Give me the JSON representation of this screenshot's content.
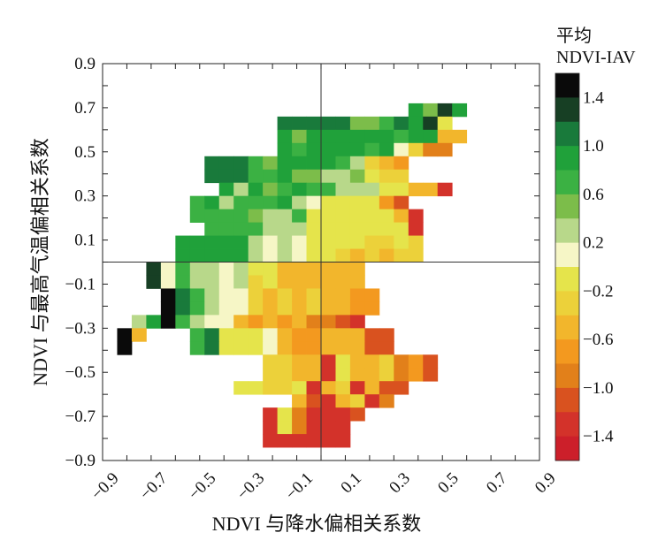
{
  "chart_data": {
    "type": "heatmap",
    "xlabel": "NDVI 与降水偏相关系数",
    "ylabel": "NDVI 与最高气温偏相关系数",
    "xlim": [
      -0.9,
      0.9
    ],
    "ylim": [
      -0.9,
      0.9
    ],
    "x_ticks": [
      -0.9,
      -0.8,
      -0.7,
      -0.6,
      -0.5,
      -0.4,
      -0.3,
      -0.2,
      -0.1,
      0.0,
      0.1,
      0.2,
      0.3,
      0.4,
      0.5,
      0.6,
      0.7,
      0.8,
      0.9
    ],
    "x_tick_labels": [
      "−0.9",
      "",
      "−0.7",
      "",
      "−0.5",
      "",
      "−0.3",
      "",
      "−0.1",
      "",
      "0.1",
      "",
      "0.3",
      "",
      "0.5",
      "",
      "0.7",
      "",
      "0.9"
    ],
    "y_ticks": [
      0.9,
      0.8,
      0.7,
      0.6,
      0.5,
      0.4,
      0.3,
      0.2,
      0.1,
      0.0,
      -0.1,
      -0.2,
      -0.3,
      -0.4,
      -0.5,
      -0.6,
      -0.7,
      -0.8,
      -0.9
    ],
    "y_tick_labels": [
      "0.9",
      "",
      "0.7",
      "",
      "0.5",
      "",
      "0.3",
      "",
      "0.1",
      "",
      "−0.1",
      "",
      "−0.3",
      "",
      "−0.5",
      "",
      "−0.7",
      "",
      "−0.9"
    ],
    "bin_size": 0.06,
    "reference_lines": {
      "x": 0.0,
      "y": 0.0
    },
    "colorbar": {
      "title_lines": [
        "平均",
        "NDVI-IAV"
      ],
      "min": -1.6,
      "max": 1.6,
      "tick_values": [
        1.4,
        1.0,
        0.6,
        0.2,
        -0.2,
        -0.6,
        -1.0,
        -1.4
      ],
      "tick_labels": [
        "1.4",
        "1.0",
        "0.6",
        "0.2",
        "−0.2",
        "−0.6",
        "−1.0",
        "−1.4"
      ],
      "levels": [
        {
          "min": 1.4,
          "max": 1.6,
          "color": "#0a0a0a"
        },
        {
          "min": 1.2,
          "max": 1.4,
          "color": "#173f24"
        },
        {
          "min": 1.0,
          "max": 1.2,
          "color": "#197a3b"
        },
        {
          "min": 0.8,
          "max": 1.0,
          "color": "#20a13a"
        },
        {
          "min": 0.6,
          "max": 0.8,
          "color": "#3bb143"
        },
        {
          "min": 0.4,
          "max": 0.6,
          "color": "#7cbd4a"
        },
        {
          "min": 0.2,
          "max": 0.4,
          "color": "#b8d88a"
        },
        {
          "min": 0.0,
          "max": 0.2,
          "color": "#f6f6c6"
        },
        {
          "min": -0.2,
          "max": 0.0,
          "color": "#e5e44b"
        },
        {
          "min": -0.4,
          "max": -0.2,
          "color": "#ecd13a"
        },
        {
          "min": -0.6,
          "max": -0.4,
          "color": "#f2b62c"
        },
        {
          "min": -0.8,
          "max": -0.6,
          "color": "#f3991f"
        },
        {
          "min": -1.0,
          "max": -0.8,
          "color": "#e2801a"
        },
        {
          "min": -1.2,
          "max": -1.0,
          "color": "#d9521f"
        },
        {
          "min": -1.4,
          "max": -1.2,
          "color": "#d3322a"
        },
        {
          "min": -1.6,
          "max": -1.4,
          "color": "#cc1f2a"
        }
      ]
    },
    "rows": [
      {
        "y": 0.69,
        "x_start": 0.39,
        "values": [
          0.8,
          0.5,
          1.2,
          0.8
        ]
      },
      {
        "y": 0.63,
        "x_start": -0.15,
        "values": [
          1.0,
          1.0,
          1.0,
          1.0,
          1.0,
          0.5,
          0.5,
          0.6,
          1.0,
          0.9,
          1.3,
          -0.2
        ]
      },
      {
        "y": 0.57,
        "x_start": -0.15,
        "values": [
          0.8,
          0.5,
          0.8,
          0.8,
          0.8,
          0.8,
          0.8,
          0.8,
          0.7,
          0.9,
          0.8,
          -0.6,
          -0.6
        ]
      },
      {
        "y": 0.51,
        "x_start": -0.15,
        "values": [
          0.9,
          0.6,
          0.8,
          0.8,
          0.8,
          0.8,
          0.7,
          0.8,
          0.1,
          -0.4,
          -0.9,
          -0.9
        ]
      },
      {
        "y": 0.45,
        "x_start": -0.45,
        "values": [
          1.1,
          1.1,
          1.1,
          0.7,
          0.5,
          0.8,
          0.8,
          0.8,
          0.8,
          0.7,
          0.3,
          -0.3,
          -0.5,
          -0.7
        ]
      },
      {
        "y": 0.39,
        "x_start": -0.45,
        "values": [
          1.1,
          1.1,
          1.1,
          0.7,
          0.7,
          0.8,
          0.5,
          0.5,
          0.3,
          0.3,
          0.5,
          -0.2,
          -0.3,
          -0.4
        ]
      },
      {
        "y": 0.33,
        "x_start": -0.39,
        "values": [
          0.8,
          0.2,
          0.8,
          0.5,
          0.7,
          0.8,
          0.6,
          0.6,
          0.3,
          0.3,
          0.3,
          -0.2,
          -0.2,
          -0.5,
          -0.5,
          -1.4
        ]
      },
      {
        "y": 0.27,
        "x_start": -0.51,
        "values": [
          0.7,
          0.9,
          0.3,
          0.7,
          0.6,
          0.7,
          0.8,
          0.3,
          0.1,
          -0.1,
          -0.1,
          -0.1,
          -0.1,
          -0.7,
          -1.1
        ]
      },
      {
        "y": 0.21,
        "x_start": -0.51,
        "values": [
          0.7,
          0.7,
          0.7,
          0.7,
          0.5,
          0.3,
          0.3,
          0.6,
          -0.1,
          -0.1,
          -0.2,
          -0.1,
          -0.2,
          -0.2,
          -0.5,
          -1.3
        ]
      },
      {
        "y": 0.15,
        "x_start": -0.45,
        "values": [
          0.7,
          0.7,
          0.7,
          0.6,
          0.3,
          0.3,
          0.2,
          -0.1,
          -0.1,
          -0.2,
          -0.1,
          -0.1,
          -0.2,
          -0.1,
          -1.3
        ]
      },
      {
        "y": 0.09,
        "x_start": -0.57,
        "values": [
          0.8,
          0.8,
          0.8,
          0.8,
          0.8,
          0.2,
          0.1,
          0.3,
          0.1,
          -0.1,
          -0.1,
          -0.1,
          -0.1,
          -0.3,
          -0.4,
          -0.2,
          -0.3
        ]
      },
      {
        "y": 0.03,
        "x_start": -0.57,
        "values": [
          0.8,
          0.8,
          0.8,
          0.8,
          0.8,
          0.2,
          0.1,
          0.3,
          0.1,
          -0.1,
          -0.1,
          -0.3,
          -0.5,
          -0.4,
          -0.5,
          -0.4,
          -0.4
        ]
      },
      {
        "y": -0.03,
        "x_start": -0.69,
        "values": [
          1.2,
          0.1,
          0.7,
          0.2,
          0.2,
          0.1,
          0.2,
          -0.1,
          -0.1,
          -0.5,
          -0.5,
          -0.5,
          -0.5,
          -0.5,
          -0.5
        ]
      },
      {
        "y": -0.09,
        "x_start": -0.69,
        "values": [
          1.2,
          0.1,
          0.7,
          0.2,
          0.2,
          0.1,
          0.2,
          -0.4,
          -0.1,
          -0.5,
          -0.5,
          -0.5,
          -0.5,
          -0.5,
          -0.5
        ]
      },
      {
        "y": -0.15,
        "x_start": -0.63,
        "values": [
          1.5,
          1.1,
          0.7,
          0.2,
          0.1,
          0.1,
          -0.3,
          -0.6,
          -0.3,
          -0.5,
          -0.3,
          -0.6,
          -0.6,
          -0.7,
          -0.7
        ]
      },
      {
        "y": -0.21,
        "x_start": -0.63,
        "values": [
          1.5,
          1.1,
          0.7,
          0.2,
          0.1,
          0.1,
          -0.3,
          -0.6,
          -0.3,
          -0.5,
          -0.3,
          -0.6,
          -0.6,
          -0.7,
          -0.7
        ]
      },
      {
        "y": -0.27,
        "x_start": -0.75,
        "values": [
          0.3,
          0.8,
          1.5,
          0.7,
          0.2,
          0.1,
          0.1,
          -0.6,
          -0.7,
          -0.5,
          -0.7,
          -0.6,
          -0.9,
          -0.9,
          -1.1,
          -1.4
        ]
      },
      {
        "y": -0.33,
        "x_start": -0.81,
        "values": [
          1.5,
          -0.5
        ]
      },
      {
        "y": -0.39,
        "x_start": -0.81,
        "values": [
          1.5
        ]
      },
      {
        "y": -0.33,
        "x_start": -0.51,
        "values": [
          0.6,
          1.1,
          -0.1,
          -0.1,
          -0.2,
          0.1,
          -0.6,
          -0.7,
          -0.7,
          -0.6,
          -0.5,
          -0.6,
          -1.1,
          -1.1
        ]
      },
      {
        "y": -0.39,
        "x_start": -0.51,
        "values": [
          0.6,
          1.1,
          -0.1,
          -0.1,
          -0.2,
          0.1,
          -0.6,
          -0.7,
          -0.7,
          -0.5,
          -0.5,
          -0.6,
          -1.1,
          -1.1
        ]
      },
      {
        "y": -0.45,
        "x_start": -0.21,
        "values": [
          -0.3,
          -0.4,
          -0.6,
          -0.5,
          -1.4,
          -0.2,
          -0.6,
          -0.5,
          -0.4,
          -0.9,
          -0.7,
          -1.1
        ]
      },
      {
        "y": -0.51,
        "x_start": -0.21,
        "values": [
          -0.3,
          -0.4,
          -0.6,
          -0.5,
          -1.4,
          -0.2,
          -0.6,
          -0.5,
          -0.4,
          -0.9,
          -0.7,
          -1.1
        ]
      },
      {
        "y": -0.57,
        "x_start": -0.33,
        "values": [
          -0.2,
          -0.2,
          -0.4,
          -0.4,
          -0.2,
          -1.4,
          -0.5,
          -0.4,
          -1.3,
          -0.5,
          -1.1,
          -1.1
        ]
      },
      {
        "y": -0.63,
        "x_start": -0.09,
        "values": [
          -0.6,
          -1.1,
          -1.4,
          -0.5,
          -0.4,
          -1.3,
          -0.9
        ]
      },
      {
        "y": -0.69,
        "x_start": -0.21,
        "values": [
          -1.4,
          -0.1,
          -1.0,
          -1.3,
          -1.4,
          -1.3,
          -1.1
        ]
      },
      {
        "y": -0.75,
        "x_start": -0.21,
        "values": [
          -1.4,
          -0.1,
          -1.0,
          -1.3,
          -1.4,
          -1.3
        ]
      },
      {
        "y": -0.81,
        "x_start": -0.21,
        "values": [
          -1.3,
          -1.3,
          -1.4,
          -1.4,
          -1.4,
          -1.3
        ]
      }
    ]
  }
}
